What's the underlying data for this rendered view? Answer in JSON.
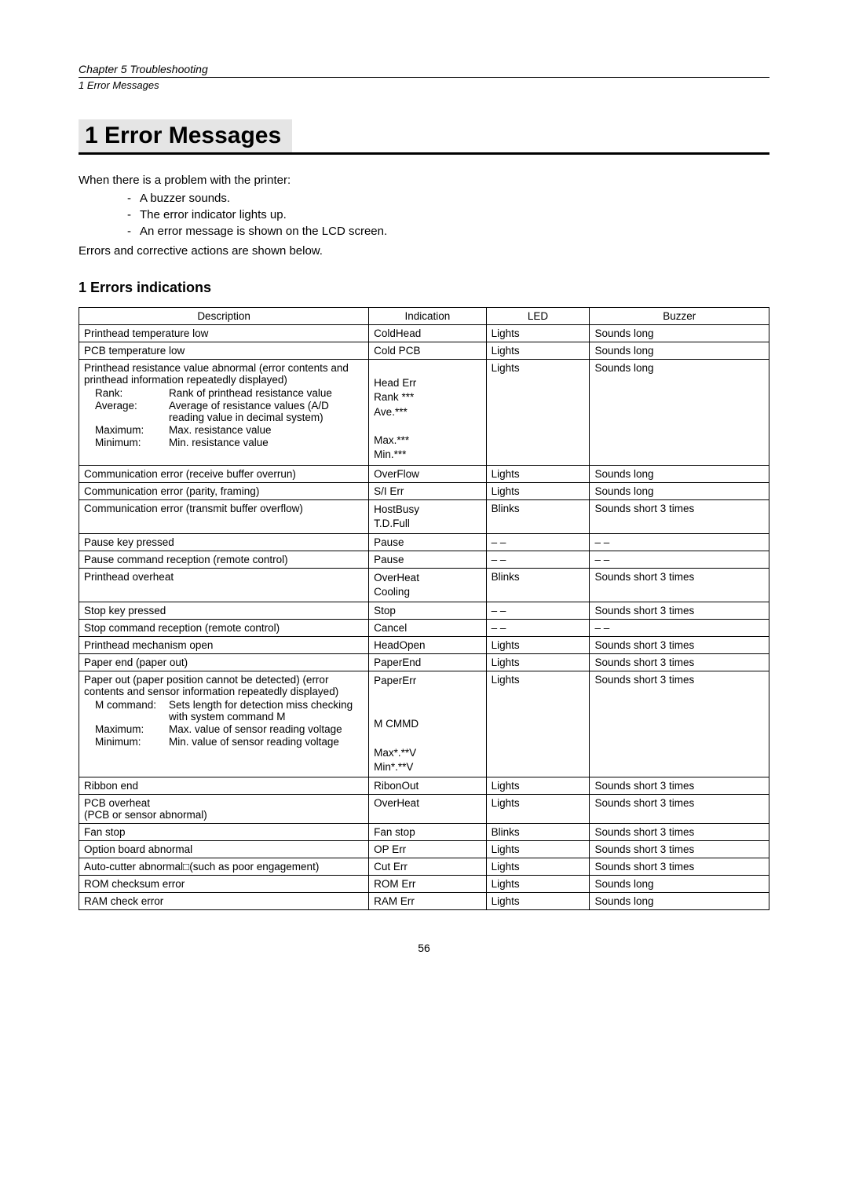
{
  "header": {
    "chapter": "Chapter 5   Troubleshooting",
    "sub": "1   Error Messages"
  },
  "title": "1   Error Messages",
  "intro": "When there is a problem with the printer:",
  "bullets": [
    "A buzzer sounds.",
    "The error indicator lights up.",
    "An error message is shown on the LCD screen."
  ],
  "after": "Errors and corrective actions are shown below.",
  "section_title": "1  Errors indications",
  "columns": {
    "description": "Description",
    "indication": "Indication",
    "led": "LED",
    "buzzer": "Buzzer"
  },
  "rows": [
    {
      "desc": "Printhead temperature low",
      "ind": "ColdHead",
      "led": "Lights",
      "buz": "Sounds long"
    },
    {
      "desc": "PCB temperature low",
      "ind": "Cold PCB",
      "led": "Lights",
      "buz": "Sounds long"
    },
    {
      "desc_main": "Printhead resistance value abnormal (error contents and printhead information repeatedly displayed)",
      "desc_sub": [
        {
          "k": "Rank:",
          "v": "Rank of printhead resistance value"
        },
        {
          "k": "Average:",
          "v": "Average of resistance values (A/D reading value in decimal system)"
        },
        {
          "k": "Maximum:",
          "v": "Max. resistance value"
        },
        {
          "k": "Minimum:",
          "v": "Min. resistance value"
        }
      ],
      "ind_multi": [
        "",
        "Head Err",
        "Rank ***",
        "Ave.***",
        "",
        "Max.***",
        "Min.***"
      ],
      "led": "Lights",
      "buz": "Sounds long"
    },
    {
      "desc": "Communication error (receive buffer overrun)",
      "ind": "OverFlow",
      "led": "Lights",
      "buz": "Sounds long"
    },
    {
      "desc": "Communication error (parity, framing)",
      "ind": "S/I Err",
      "led": "Lights",
      "buz": "Sounds long"
    },
    {
      "desc": "Communication error (transmit buffer overflow)",
      "ind_multi": [
        "HostBusy",
        "T.D.Full"
      ],
      "led": "Blinks",
      "buz": "Sounds short 3 times"
    },
    {
      "desc": "Pause key pressed",
      "ind": "Pause",
      "led": "– –",
      "buz": "– –"
    },
    {
      "desc": "Pause command reception (remote control)",
      "ind": "Pause",
      "led": "– –",
      "buz": "– –"
    },
    {
      "desc": "Printhead overheat",
      "ind_multi": [
        "OverHeat",
        "Cooling"
      ],
      "led": "Blinks",
      "buz": "Sounds short 3 times"
    },
    {
      "desc": "Stop key pressed",
      "ind": "Stop",
      "led": "– –",
      "buz": "Sounds short 3 times"
    },
    {
      "desc": "Stop command reception (remote control)",
      "ind": "Cancel",
      "led": "– –",
      "buz": "– –"
    },
    {
      "desc": "Printhead mechanism open",
      "ind": "HeadOpen",
      "led": "Lights",
      "buz": "Sounds short 3 times"
    },
    {
      "desc": "Paper end (paper out)",
      "ind": "PaperEnd",
      "led": "Lights",
      "buz": "Sounds short 3 times"
    },
    {
      "desc_main": "Paper out (paper position cannot be detected) (error contents and sensor information repeatedly displayed)",
      "desc_sub": [
        {
          "k": "M command:",
          "v": "Sets length for detection miss checking with system command M"
        },
        {
          "k": "Maximum:",
          "v": "Max. value of sensor reading voltage"
        },
        {
          "k": "Minimum:",
          "v": "Min. value of sensor reading voltage"
        }
      ],
      "ind_multi": [
        "PaperErr",
        "",
        "",
        "M CMMD",
        "",
        "Max*.**V",
        "Min*.**V"
      ],
      "led": "Lights",
      "buz": "Sounds short 3 times"
    },
    {
      "desc": "Ribbon end",
      "ind": "RibonOut",
      "led": "Lights",
      "buz": "Sounds short 3 times"
    },
    {
      "desc_multi": [
        "PCB overheat",
        "(PCB or sensor abnormal)"
      ],
      "ind": "OverHeat",
      "led": "Lights",
      "buz": "Sounds short 3 times"
    },
    {
      "desc": "Fan stop",
      "ind": "Fan stop",
      "led": "Blinks",
      "buz": "Sounds short 3 times"
    },
    {
      "desc": "Option board abnormal",
      "ind": "OP Err",
      "led": "Lights",
      "buz": "Sounds short 3 times"
    },
    {
      "desc": "Auto-cutter abnormal□(such as poor engagement)",
      "ind": "Cut Err",
      "led": "Lights",
      "buz": "Sounds short 3 times"
    },
    {
      "desc": "ROM checksum error",
      "ind": "ROM Err",
      "led": "Lights",
      "buz": "Sounds long"
    },
    {
      "desc": "RAM check error",
      "ind": "RAM Err",
      "led": "Lights",
      "buz": "Sounds long"
    }
  ],
  "pagenum": "56"
}
